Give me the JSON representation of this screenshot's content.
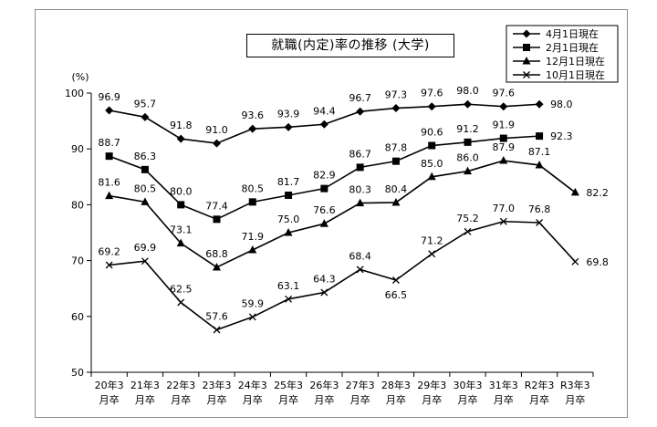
{
  "chart_data": {
    "type": "line",
    "title": "就職(内定)率の推移 (大学)",
    "ylabel": "(%)",
    "ylim": [
      50,
      100
    ],
    "yticks": [
      50,
      60,
      70,
      80,
      90,
      100
    ],
    "categories": [
      [
        "20年3",
        "月卒"
      ],
      [
        "21年3",
        "月卒"
      ],
      [
        "22年3",
        "月卒"
      ],
      [
        "23年3",
        "月卒"
      ],
      [
        "24年3",
        "月卒"
      ],
      [
        "25年3",
        "月卒"
      ],
      [
        "26年3",
        "月卒"
      ],
      [
        "27年3",
        "月卒"
      ],
      [
        "28年3",
        "月卒"
      ],
      [
        "29年3",
        "月卒"
      ],
      [
        "30年3",
        "月卒"
      ],
      [
        "31年3",
        "月卒"
      ],
      [
        "R2年3",
        "月卒"
      ],
      [
        "R3年3",
        "月卒"
      ]
    ],
    "legend_position": "top-right",
    "series": [
      {
        "name": "4月1日現在",
        "marker": "diamond",
        "values": [
          96.9,
          95.7,
          91.8,
          91.0,
          93.6,
          93.9,
          94.4,
          96.7,
          97.3,
          97.6,
          98.0,
          97.6,
          98.0,
          null
        ],
        "labels": [
          "96.9",
          "95.7",
          "91.8",
          "91.0",
          "93.6",
          "93.9",
          "94.4",
          "96.7",
          "97.3",
          "97.6",
          "98.0",
          "97.6",
          "98.0",
          null
        ]
      },
      {
        "name": "2月1日現在",
        "marker": "square",
        "values": [
          88.7,
          86.3,
          80.0,
          77.4,
          80.5,
          81.7,
          82.9,
          86.7,
          87.8,
          90.6,
          91.2,
          91.9,
          92.3,
          null
        ],
        "labels": [
          "88.7",
          "86.3",
          "80.0",
          "77.4",
          "80.5",
          "81.7",
          "82.9",
          "86.7",
          "87.8",
          "90.6",
          "91.2",
          "91.9",
          "92.3",
          null
        ]
      },
      {
        "name": "12月1日現在",
        "marker": "triangle",
        "values": [
          81.6,
          80.5,
          73.1,
          68.8,
          71.9,
          75.0,
          76.6,
          80.3,
          80.4,
          85.0,
          86.0,
          87.9,
          87.1,
          82.2
        ],
        "labels": [
          "81.6",
          "80.5",
          "73.1",
          "68.8",
          "71.9",
          "75.0",
          "76.6",
          "80.3",
          "80.4",
          "85.0",
          "86.0",
          "87.9",
          "87.1",
          "82.2"
        ]
      },
      {
        "name": "10月1日現在",
        "marker": "x",
        "values": [
          69.2,
          69.9,
          62.5,
          57.6,
          59.9,
          63.1,
          64.3,
          68.4,
          66.5,
          71.2,
          75.2,
          77.0,
          76.8,
          69.8
        ],
        "labels": [
          "69.2",
          "69.9",
          "62.5",
          "57.6",
          "59.9",
          "63.1",
          "64.3",
          "68.4",
          "66.5",
          "71.2",
          "75.2",
          "77.0",
          "76.8",
          "69.8"
        ]
      }
    ]
  },
  "colors": {
    "line": "#000000",
    "frame": "#8c8c8c"
  }
}
